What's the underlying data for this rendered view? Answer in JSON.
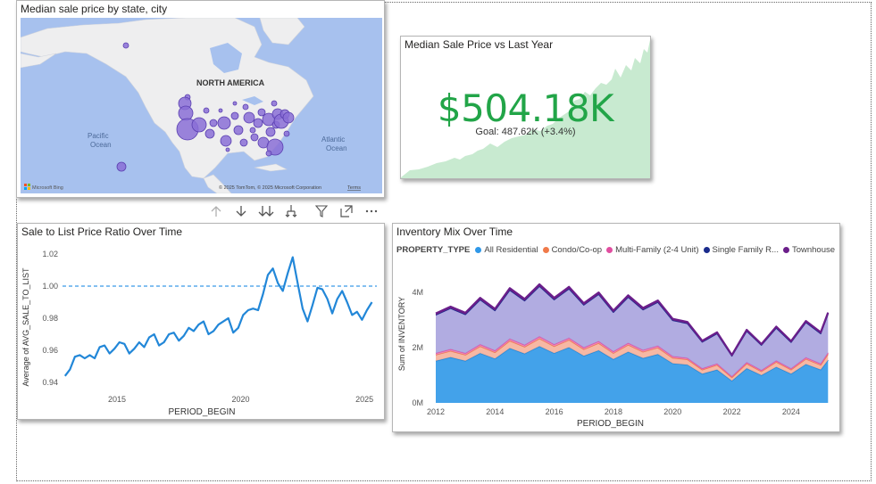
{
  "map_visual": {
    "title": "Median sale price by state, city",
    "region_label": "NORTH AMERICA",
    "ocean_pacific": [
      "Pacific",
      "Ocean"
    ],
    "ocean_atlantic": [
      "Atlantic",
      "Ocean"
    ],
    "brand": "Microsoft Bing",
    "copyright": "© 2025 TomTom, © 2025 Microsoft Corporation",
    "terms": "Terms",
    "bubble_color": "#8a6fd6"
  },
  "kpi_visual": {
    "title": "Median Sale Price vs Last Year",
    "value": "$504.18K",
    "goal_text": "Goal: 487.62K (+3.4%)",
    "value_color": "#22a548",
    "trend_color": "#c8ead0"
  },
  "toolbar": {
    "icons": [
      "drill-up-icon",
      "drill-down-icon",
      "expand-next-level-icon",
      "expand-all-icon",
      "filter-icon",
      "focus-mode-icon",
      "more-options-icon"
    ]
  },
  "ratio_chart": {
    "title": "Sale to List Price Ratio Over Time"
  },
  "inventory_chart": {
    "title": "Inventory Mix Over Time",
    "legend_title": "PROPERTY_TYPE",
    "legend": [
      {
        "name": "All Residential",
        "color": "#2f98e8"
      },
      {
        "name": "Condo/Co-op",
        "color": "#f07a4a"
      },
      {
        "name": "Multi-Family (2-4 Unit)",
        "color": "#e14ea0"
      },
      {
        "name": "Single Family R...",
        "color": "#1a2b8c"
      },
      {
        "name": "Townhouse",
        "color": "#6b1e8a"
      }
    ]
  },
  "chart_data": [
    {
      "type": "line",
      "title": "Sale to List Price Ratio Over Time",
      "xlabel": "PERIOD_BEGIN",
      "ylabel": "Average of AVG_SALE_TO_LIST",
      "xlim": [
        2012.8,
        2025.5
      ],
      "ylim": [
        0.935,
        1.025
      ],
      "xticks": [
        "2015",
        "2020",
        "2025"
      ],
      "xtick_values": [
        2015,
        2020,
        2025
      ],
      "yticks": [
        "0.94",
        "0.96",
        "0.98",
        "1.00",
        "1.02"
      ],
      "ytick_values": [
        0.94,
        0.96,
        0.98,
        1.0,
        1.02
      ],
      "reference_line": 1.0,
      "series": [
        {
          "color": "#2287d8",
          "x": [
            2012.9,
            2013.1,
            2013.3,
            2013.5,
            2013.7,
            2013.9,
            2014.1,
            2014.3,
            2014.5,
            2014.7,
            2014.9,
            2015.1,
            2015.3,
            2015.5,
            2015.7,
            2015.9,
            2016.1,
            2016.3,
            2016.5,
            2016.7,
            2016.9,
            2017.1,
            2017.3,
            2017.5,
            2017.7,
            2017.9,
            2018.1,
            2018.3,
            2018.5,
            2018.7,
            2018.9,
            2019.1,
            2019.3,
            2019.5,
            2019.7,
            2019.9,
            2020.1,
            2020.3,
            2020.5,
            2020.7,
            2020.9,
            2021.1,
            2021.3,
            2021.5,
            2021.7,
            2021.9,
            2022.1,
            2022.3,
            2022.5,
            2022.7,
            2022.9,
            2023.1,
            2023.3,
            2023.5,
            2023.7,
            2023.9,
            2024.1,
            2024.3,
            2024.5,
            2024.7,
            2024.9,
            2025.1,
            2025.3
          ],
          "y": [
            0.944,
            0.948,
            0.956,
            0.957,
            0.955,
            0.957,
            0.955,
            0.962,
            0.963,
            0.958,
            0.961,
            0.965,
            0.964,
            0.958,
            0.961,
            0.965,
            0.962,
            0.968,
            0.97,
            0.963,
            0.965,
            0.97,
            0.971,
            0.966,
            0.969,
            0.974,
            0.972,
            0.976,
            0.978,
            0.97,
            0.972,
            0.976,
            0.978,
            0.98,
            0.971,
            0.974,
            0.982,
            0.985,
            0.986,
            0.985,
            0.995,
            1.007,
            1.011,
            1.002,
            0.997,
            1.008,
            1.018,
            1.002,
            0.986,
            0.978,
            0.988,
            0.999,
            0.998,
            0.992,
            0.983,
            0.992,
            0.997,
            0.99,
            0.982,
            0.984,
            0.979,
            0.985,
            0.99
          ]
        }
      ]
    },
    {
      "type": "area",
      "title": "Inventory Mix Over Time",
      "xlabel": "PERIOD_BEGIN",
      "ylabel": "Sum of INVENTORY",
      "xlim": [
        2012,
        2025.3
      ],
      "ylim": [
        0,
        5000000
      ],
      "xticks": [
        "2012",
        "2014",
        "2016",
        "2018",
        "2020",
        "2022",
        "2024"
      ],
      "xtick_values": [
        2012,
        2014,
        2016,
        2018,
        2020,
        2022,
        2024
      ],
      "yticks": [
        "0M",
        "2M",
        "4M"
      ],
      "ytick_values": [
        0,
        2000000,
        4000000
      ],
      "stacked": true,
      "x": [
        2012.0,
        2012.5,
        2013.0,
        2013.5,
        2014.0,
        2014.5,
        2015.0,
        2015.5,
        2016.0,
        2016.5,
        2017.0,
        2017.5,
        2018.0,
        2018.5,
        2019.0,
        2019.5,
        2020.0,
        2020.5,
        2021.0,
        2021.5,
        2022.0,
        2022.5,
        2023.0,
        2023.5,
        2024.0,
        2024.5,
        2025.0,
        2025.25
      ],
      "series": [
        {
          "name": "All Residential",
          "color": "#2f98e8",
          "values": [
            1520000,
            1650000,
            1520000,
            1800000,
            1600000,
            1980000,
            1780000,
            2050000,
            1800000,
            2010000,
            1700000,
            1900000,
            1580000,
            1850000,
            1620000,
            1760000,
            1430000,
            1380000,
            1050000,
            1200000,
            800000,
            1250000,
            1000000,
            1300000,
            1050000,
            1400000,
            1200000,
            1550000
          ]
        },
        {
          "name": "Condo/Co-op",
          "color": "#f5b09a",
          "values": [
            220000,
            230000,
            220000,
            250000,
            230000,
            270000,
            250000,
            280000,
            250000,
            270000,
            240000,
            260000,
            220000,
            250000,
            230000,
            240000,
            200000,
            190000,
            150000,
            170000,
            120000,
            170000,
            140000,
            180000,
            150000,
            190000,
            170000,
            210000
          ]
        },
        {
          "name": "Multi-Family (2-4 Unit)",
          "color": "#e985b8",
          "values": [
            60000,
            62000,
            60000,
            66000,
            62000,
            70000,
            66000,
            72000,
            66000,
            70000,
            64000,
            68000,
            60000,
            66000,
            62000,
            64000,
            56000,
            54000,
            44000,
            48000,
            36000,
            48000,
            40000,
            50000,
            42000,
            52000,
            48000,
            56000
          ]
        },
        {
          "name": "Single Family R...",
          "color": "#a9a3de",
          "values": [
            1380000,
            1480000,
            1400000,
            1620000,
            1450000,
            1760000,
            1600000,
            1820000,
            1620000,
            1780000,
            1540000,
            1700000,
            1420000,
            1660000,
            1460000,
            1580000,
            1300000,
            1250000,
            960000,
            1090000,
            740000,
            1130000,
            910000,
            1180000,
            950000,
            1270000,
            1090000,
            1400000
          ]
        },
        {
          "name": "Townhouse",
          "color": "#6b1e8a",
          "values": [
            60000,
            62000,
            60000,
            66000,
            62000,
            70000,
            66000,
            72000,
            66000,
            70000,
            64000,
            68000,
            60000,
            66000,
            62000,
            64000,
            56000,
            54000,
            44000,
            48000,
            36000,
            48000,
            40000,
            50000,
            42000,
            52000,
            48000,
            56000
          ]
        }
      ]
    }
  ]
}
